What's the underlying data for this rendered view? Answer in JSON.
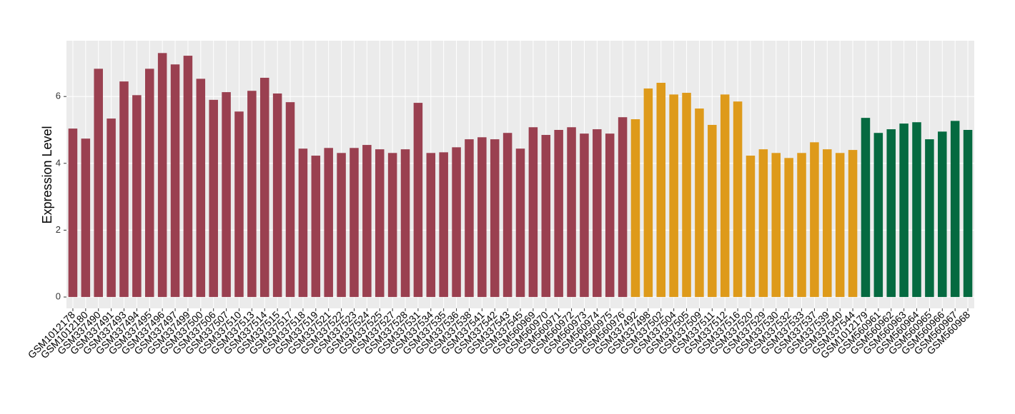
{
  "chart_data": {
    "type": "bar",
    "y_label": "Expression Level",
    "categories": [
      "GSM1012178",
      "GSM1012180",
      "GSM337490",
      "GSM337491",
      "GSM337493",
      "GSM337494",
      "GSM337495",
      "GSM337496",
      "GSM337497",
      "GSM337499",
      "GSM337500",
      "GSM337506",
      "GSM337507",
      "GSM337510",
      "GSM337513",
      "GSM337514",
      "GSM337515",
      "GSM337517",
      "GSM337518",
      "GSM337519",
      "GSM337521",
      "GSM337522",
      "GSM337523",
      "GSM337524",
      "GSM337525",
      "GSM337527",
      "GSM337528",
      "GSM337531",
      "GSM337534",
      "GSM337535",
      "GSM337536",
      "GSM337538",
      "GSM337541",
      "GSM337542",
      "GSM337543",
      "GSM337545",
      "GSM560969",
      "GSM560970",
      "GSM560971",
      "GSM560972",
      "GSM560973",
      "GSM560974",
      "GSM560975",
      "GSM560976",
      "GSM337492",
      "GSM337498",
      "GSM337502",
      "GSM337504",
      "GSM337505",
      "GSM337509",
      "GSM337511",
      "GSM337512",
      "GSM337516",
      "GSM337520",
      "GSM337529",
      "GSM337530",
      "GSM337532",
      "GSM337533",
      "GSM337537",
      "GSM337539",
      "GSM337540",
      "GSM337544",
      "GSM1012179",
      "GSM560961",
      "GSM560962",
      "GSM560963",
      "GSM560964",
      "GSM560965",
      "GSM560966",
      "GSM560967",
      "GSM560968"
    ],
    "values": [
      5.04,
      4.74,
      6.83,
      5.34,
      6.45,
      6.04,
      6.83,
      7.3,
      6.96,
      7.22,
      6.53,
      5.9,
      6.13,
      5.55,
      6.17,
      6.56,
      6.09,
      5.83,
      4.44,
      4.23,
      4.46,
      4.31,
      4.46,
      4.55,
      4.42,
      4.31,
      4.42,
      5.81,
      4.31,
      4.33,
      4.48,
      4.72,
      4.78,
      4.72,
      4.91,
      4.44,
      5.08,
      4.85,
      5.0,
      5.08,
      4.89,
      5.02,
      4.89,
      5.38,
      5.32,
      6.24,
      6.41,
      6.06,
      6.11,
      5.64,
      5.15,
      6.06,
      5.85,
      4.23,
      4.42,
      4.31,
      4.16,
      4.31,
      4.63,
      4.42,
      4.31,
      4.4,
      5.36,
      4.91,
      5.02,
      5.19,
      5.23,
      4.72,
      4.95,
      5.27,
      5.0
    ],
    "colors": [
      "#9a4050",
      "#9a4050",
      "#9a4050",
      "#9a4050",
      "#9a4050",
      "#9a4050",
      "#9a4050",
      "#9a4050",
      "#9a4050",
      "#9a4050",
      "#9a4050",
      "#9a4050",
      "#9a4050",
      "#9a4050",
      "#9a4050",
      "#9a4050",
      "#9a4050",
      "#9a4050",
      "#9a4050",
      "#9a4050",
      "#9a4050",
      "#9a4050",
      "#9a4050",
      "#9a4050",
      "#9a4050",
      "#9a4050",
      "#9a4050",
      "#9a4050",
      "#9a4050",
      "#9a4050",
      "#9a4050",
      "#9a4050",
      "#9a4050",
      "#9a4050",
      "#9a4050",
      "#9a4050",
      "#9a4050",
      "#9a4050",
      "#9a4050",
      "#9a4050",
      "#9a4050",
      "#9a4050",
      "#9a4050",
      "#9a4050",
      "#de9a1a",
      "#de9a1a",
      "#de9a1a",
      "#de9a1a",
      "#de9a1a",
      "#de9a1a",
      "#de9a1a",
      "#de9a1a",
      "#de9a1a",
      "#de9a1a",
      "#de9a1a",
      "#de9a1a",
      "#de9a1a",
      "#de9a1a",
      "#de9a1a",
      "#de9a1a",
      "#de9a1a",
      "#de9a1a",
      "#056a40",
      "#056a40",
      "#056a40",
      "#056a40",
      "#056a40",
      "#056a40",
      "#056a40",
      "#056a40",
      "#056a40"
    ],
    "ylim": [
      -0.34,
      7.67
    ],
    "yticks": [
      0,
      2,
      4,
      6
    ],
    "grid": true
  }
}
